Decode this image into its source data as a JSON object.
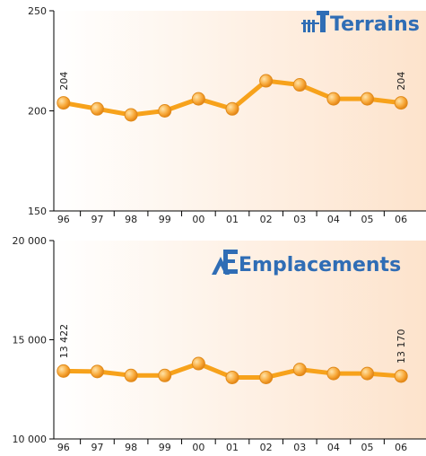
{
  "chart_data": [
    {
      "type": "line",
      "title": "Terrains",
      "categories": [
        "96",
        "97",
        "98",
        "99",
        "00",
        "01",
        "02",
        "03",
        "04",
        "05",
        "06"
      ],
      "values": [
        204,
        201,
        198,
        200,
        206,
        201,
        215,
        213,
        206,
        206,
        204
      ],
      "value_labels": [
        "204",
        null,
        null,
        null,
        null,
        null,
        null,
        null,
        null,
        null,
        "204"
      ],
      "color": "#f7a21b",
      "ylim": [
        150,
        250
      ],
      "yticks": [
        150,
        200,
        250
      ]
    },
    {
      "type": "line",
      "title": "Emplacements",
      "categories": [
        "96",
        "97",
        "98",
        "99",
        "00",
        "01",
        "02",
        "03",
        "04",
        "05",
        "06"
      ],
      "values": [
        13422,
        13400,
        13200,
        13200,
        13800,
        13100,
        13100,
        13500,
        13300,
        13300,
        13170
      ],
      "value_labels": [
        "13 422",
        null,
        null,
        null,
        null,
        null,
        null,
        null,
        null,
        null,
        "13 170"
      ],
      "color": "#f7a21b",
      "ylim": [
        10000,
        20000
      ],
      "yticks": [
        {
          "value": 10000,
          "label": "10 000"
        },
        {
          "value": 15000,
          "label": "15 000"
        },
        {
          "value": 20000,
          "label": "20 000"
        }
      ]
    }
  ]
}
